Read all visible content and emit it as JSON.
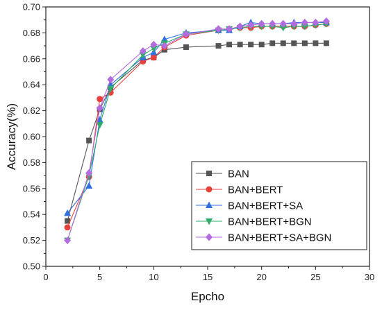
{
  "chart_data": {
    "type": "line",
    "title": "",
    "xlabel": "Epcho",
    "ylabel": "Accuracy(%)",
    "xlim": [
      0,
      30
    ],
    "ylim": [
      0.5,
      0.7
    ],
    "x_ticks": [
      0,
      5,
      10,
      15,
      20,
      25,
      30
    ],
    "y_ticks": [
      0.5,
      0.52,
      0.54,
      0.56,
      0.58,
      0.6,
      0.62,
      0.64,
      0.66,
      0.68,
      0.7
    ],
    "x_tick_labels": [
      "0",
      "5",
      "10",
      "15",
      "20",
      "25",
      "30"
    ],
    "y_tick_labels": [
      "0.50",
      "0.52",
      "0.54",
      "0.56",
      "0.58",
      "0.60",
      "0.62",
      "0.64",
      "0.66",
      "0.68",
      "0.70"
    ],
    "grid": false,
    "legend_position": "bottom-right",
    "series": [
      {
        "name": "BAN",
        "color": "#555555",
        "marker": "square",
        "x": [
          2,
          4,
          5,
          6,
          9,
          10,
          11,
          13,
          16,
          17,
          18,
          19,
          20,
          21,
          22,
          23,
          24,
          25,
          26
        ],
        "y": [
          0.535,
          0.597,
          0.621,
          0.638,
          0.659,
          0.661,
          0.667,
          0.669,
          0.67,
          0.671,
          0.671,
          0.671,
          0.671,
          0.672,
          0.672,
          0.672,
          0.672,
          0.672,
          0.672
        ]
      },
      {
        "name": "BAN+BERT",
        "color": "#e8413c",
        "marker": "circle",
        "x": [
          2,
          4,
          5,
          6,
          9,
          10,
          11,
          13,
          16,
          17,
          18,
          19,
          20,
          21,
          22,
          23,
          24,
          25,
          26
        ],
        "y": [
          0.53,
          0.569,
          0.629,
          0.634,
          0.658,
          0.661,
          0.669,
          0.678,
          0.682,
          0.683,
          0.684,
          0.684,
          0.685,
          0.685,
          0.685,
          0.685,
          0.685,
          0.686,
          0.687
        ]
      },
      {
        "name": "BAN+BERT+SA",
        "color": "#2f6fe0",
        "marker": "triangle-up",
        "x": [
          2,
          4,
          5,
          6,
          9,
          10,
          11,
          13,
          16,
          17,
          18,
          19,
          20,
          21,
          22,
          23,
          24,
          25,
          26
        ],
        "y": [
          0.541,
          0.562,
          0.613,
          0.64,
          0.661,
          0.665,
          0.675,
          0.68,
          0.682,
          0.682,
          0.685,
          0.688,
          0.687,
          0.687,
          0.687,
          0.688,
          0.688,
          0.688,
          0.688
        ]
      },
      {
        "name": "BAN+BERT+BGN",
        "color": "#2fae6a",
        "marker": "triangle-down",
        "x": [
          2,
          4,
          5,
          6,
          9,
          10,
          11,
          13,
          16,
          17,
          18,
          19,
          20,
          21,
          22,
          23,
          24,
          25,
          26
        ],
        "y": [
          0.52,
          0.57,
          0.609,
          0.637,
          0.663,
          0.668,
          0.672,
          0.679,
          0.682,
          0.683,
          0.684,
          0.685,
          0.685,
          0.685,
          0.684,
          0.685,
          0.685,
          0.686,
          0.687
        ]
      },
      {
        "name": "BAN+BERT+SA+BGN",
        "color": "#b46be0",
        "marker": "diamond",
        "x": [
          2,
          4,
          5,
          6,
          9,
          10,
          11,
          13,
          16,
          17,
          18,
          19,
          20,
          21,
          22,
          23,
          24,
          25,
          26
        ],
        "y": [
          0.52,
          0.572,
          0.622,
          0.644,
          0.666,
          0.671,
          0.67,
          0.679,
          0.683,
          0.683,
          0.685,
          0.686,
          0.687,
          0.687,
          0.687,
          0.687,
          0.688,
          0.688,
          0.689
        ]
      }
    ]
  }
}
